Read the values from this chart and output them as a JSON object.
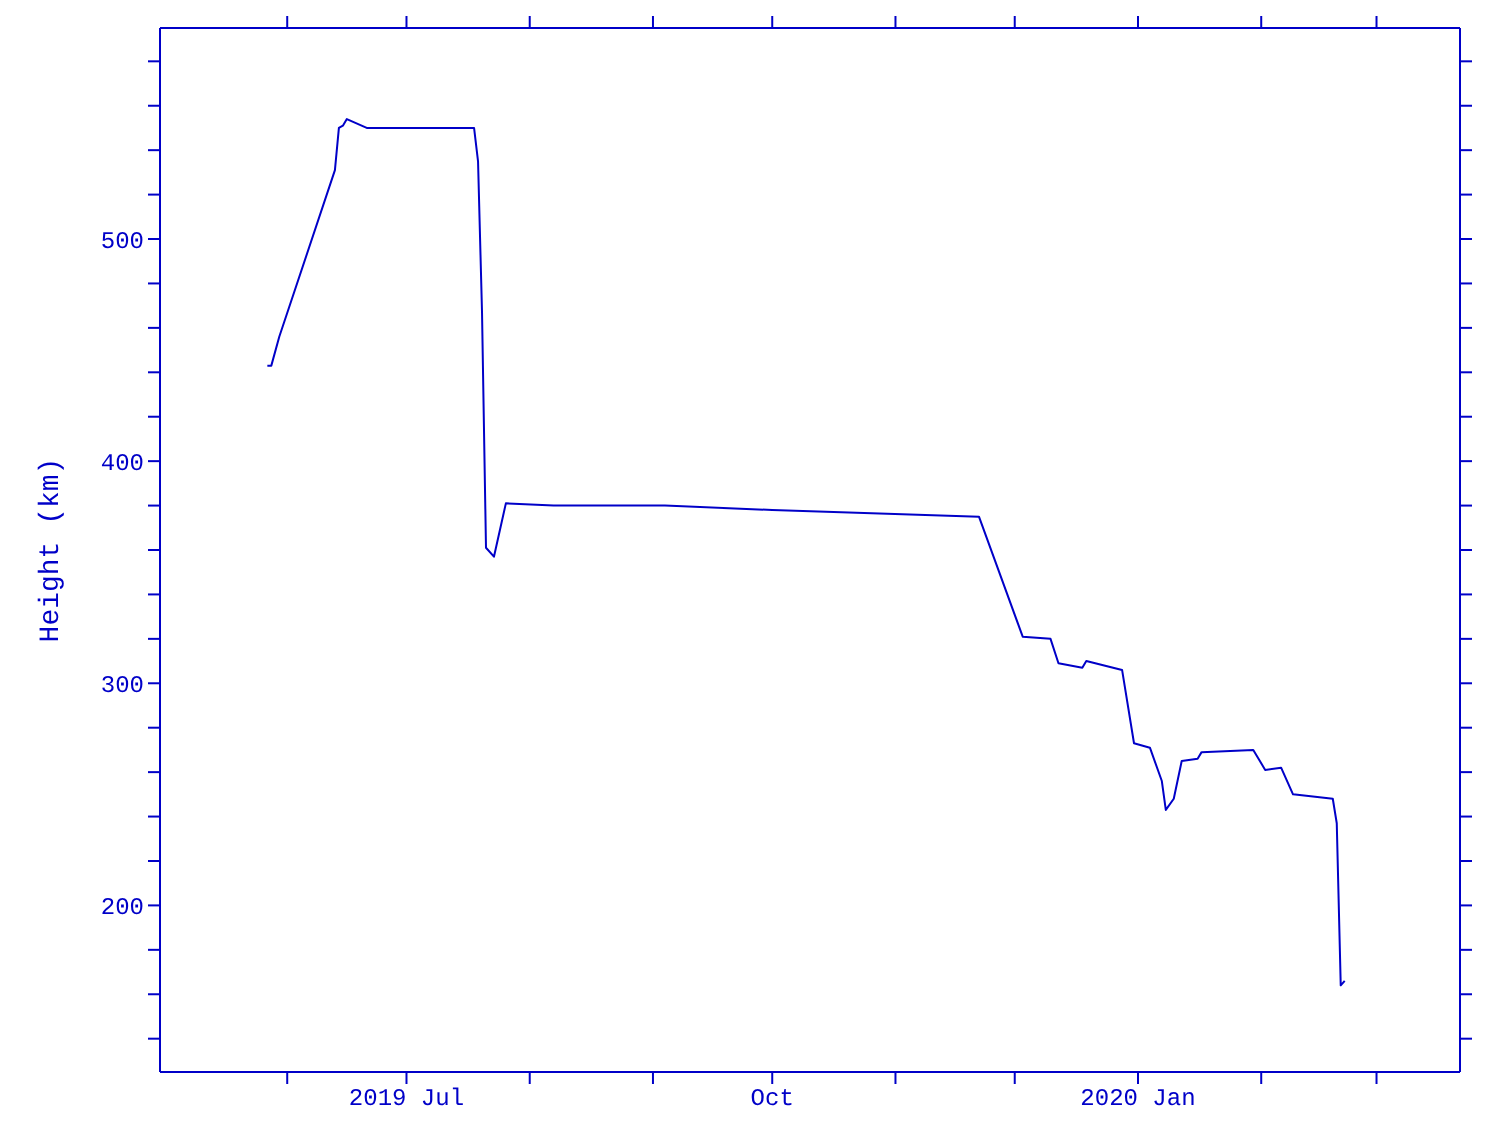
{
  "chart_data": {
    "type": "line",
    "ylabel": "Height (km)",
    "x": [
      "2019-05-27",
      "2019-05-28",
      "2019-05-30",
      "2019-06-13",
      "2019-06-14",
      "2019-06-15",
      "2019-06-16",
      "2019-06-21",
      "2019-07-18",
      "2019-07-19",
      "2019-07-20",
      "2019-07-21",
      "2019-07-23",
      "2019-07-26",
      "2019-08-07",
      "2019-09-04",
      "2019-10-01",
      "2019-11-22",
      "2019-12-03",
      "2019-12-10",
      "2019-12-12",
      "2019-12-18",
      "2019-12-19",
      "2019-12-28",
      "2019-12-31",
      "2020-01-04",
      "2020-01-07",
      "2020-01-08",
      "2020-01-10",
      "2020-01-12",
      "2020-01-16",
      "2020-01-17",
      "2020-01-30",
      "2020-02-02",
      "2020-02-06",
      "2020-02-09",
      "2020-02-19",
      "2020-02-20",
      "2020-02-21",
      "2020-02-22"
    ],
    "series": [
      {
        "color": "#0000c8",
        "values": [
          443,
          443,
          456,
          531,
          550,
          551,
          554,
          550,
          550,
          535,
          467,
          361,
          357,
          381,
          380,
          380,
          378,
          375,
          321,
          320,
          309,
          307,
          310,
          306,
          273,
          271,
          256,
          243,
          248,
          265,
          266,
          269,
          270,
          261,
          262,
          250,
          248,
          237,
          164,
          166
        ]
      }
    ],
    "xlim": [
      "2019-04-30",
      "2020-03-22"
    ],
    "xticks": [
      {
        "value": "2019-06-01",
        "label": null
      },
      {
        "value": "2019-07-01",
        "label": "2019 Jul"
      },
      {
        "value": "2019-08-01",
        "label": null
      },
      {
        "value": "2019-09-01",
        "label": null
      },
      {
        "value": "2019-10-01",
        "label": "Oct"
      },
      {
        "value": "2019-11-01",
        "label": null
      },
      {
        "value": "2019-12-01",
        "label": null
      },
      {
        "value": "2020-01-01",
        "label": "2020 Jan"
      },
      {
        "value": "2020-02-01",
        "label": null
      },
      {
        "value": "2020-03-01",
        "label": null
      }
    ],
    "ylim": [
      125,
      595
    ],
    "yticks": [
      {
        "value": 140,
        "label": null
      },
      {
        "value": 160,
        "label": null
      },
      {
        "value": 180,
        "label": null
      },
      200,
      {
        "value": 220,
        "label": null
      },
      {
        "value": 240,
        "label": null
      },
      {
        "value": 260,
        "label": null
      },
      {
        "value": 280,
        "label": null
      },
      300,
      {
        "value": 320,
        "label": null
      },
      {
        "value": 340,
        "label": null
      },
      {
        "value": 360,
        "label": null
      },
      {
        "value": 380,
        "label": null
      },
      400,
      {
        "value": 420,
        "label": null
      },
      {
        "value": 440,
        "label": null
      },
      {
        "value": 460,
        "label": null
      },
      {
        "value": 480,
        "label": null
      },
      500,
      {
        "value": 520,
        "label": null
      },
      {
        "value": 540,
        "label": null
      },
      {
        "value": 560,
        "label": null
      },
      {
        "value": 580,
        "label": null
      }
    ],
    "grid": false,
    "legend": false,
    "marker": "none",
    "line_style": "solid"
  }
}
